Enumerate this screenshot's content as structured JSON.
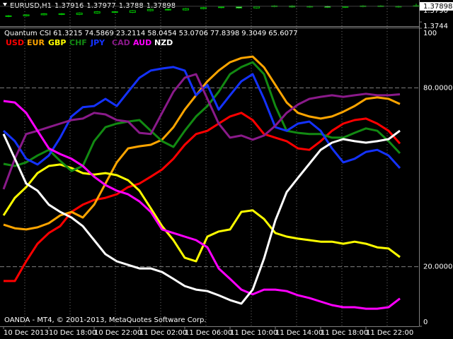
{
  "chart_data": [
    {
      "type": "candlestick",
      "symbol": "EURUSD,H1",
      "color": "#00c000",
      "open": [
        1.376,
        1.3762,
        1.3765,
        1.3768,
        1.3766,
        1.377,
        1.3774,
        1.3772,
        1.3777,
        1.3781,
        1.3779,
        1.3783,
        1.3786,
        1.3788,
        1.3785,
        1.3789,
        1.3791,
        1.3788,
        1.379,
        1.3787,
        1.3789,
        1.3791,
        1.379,
        1.37916
      ],
      "high": [
        1.3764,
        1.3767,
        1.377,
        1.377,
        1.3772,
        1.3776,
        1.3776,
        1.3779,
        1.3783,
        1.3783,
        1.3785,
        1.3788,
        1.379,
        1.379,
        1.3791,
        1.3793,
        1.3793,
        1.3792,
        1.3792,
        1.3791,
        1.3793,
        1.3793,
        1.3792,
        1.37977
      ],
      "low": [
        1.3758,
        1.376,
        1.3763,
        1.3764,
        1.3764,
        1.3768,
        1.377,
        1.377,
        1.3775,
        1.3777,
        1.3777,
        1.3781,
        1.3784,
        1.3783,
        1.3783,
        1.3787,
        1.3786,
        1.3786,
        1.3785,
        1.3785,
        1.3787,
        1.3788,
        1.3786,
        1.3788
      ],
      "close": [
        1.3762,
        1.3765,
        1.3768,
        1.3766,
        1.377,
        1.3774,
        1.3772,
        1.3777,
        1.3781,
        1.3779,
        1.3783,
        1.3786,
        1.3788,
        1.3785,
        1.3789,
        1.3791,
        1.3788,
        1.379,
        1.3787,
        1.3789,
        1.3791,
        1.379,
        1.3788,
        1.37898
      ],
      "ylim": [
        1.3738,
        1.38
      ],
      "yticks": [
        {
          "value": 1.379,
          "label": "1.3790"
        },
        1.3744
      ]
    },
    {
      "type": "line",
      "title": "Quantum CSI",
      "footer": "OANDA - MT4, © 2001-2013, MetaQuotes Software Corp.",
      "categories": [
        "10 Dec 2013",
        null,
        null,
        null,
        "10 Dec 18:00",
        null,
        null,
        null,
        "10 Dec 22:00",
        null,
        null,
        null,
        "11 Dec 02:00",
        null,
        null,
        null,
        "11 Dec 06:00",
        null,
        null,
        null,
        "11 Dec 10:00",
        null,
        null,
        null,
        "11 Dec 14:00",
        null,
        null,
        null,
        "11 Dec 18:00",
        null,
        null,
        null,
        "11 Dec 22:00",
        null,
        null,
        null
      ],
      "series": [
        {
          "name": "USD",
          "color": "#ff0000",
          "values": [
            15.2,
            15.2,
            21.8,
            27.7,
            31.3,
            33.6,
            38.4,
            40.8,
            42.4,
            43.1,
            44.3,
            46.7,
            47.9,
            50.2,
            52.6,
            56.2,
            60.9,
            64.5,
            65.6,
            68.0,
            70.4,
            71.6,
            69.2,
            64.5,
            63.3,
            62.1,
            59.7,
            59.2,
            62.1,
            65.6,
            68.0,
            69.2,
            69.7,
            68.0,
            65.6,
            61.3215
          ]
        },
        {
          "name": "EUR",
          "color": "#ffa500",
          "values": [
            34.1,
            32.9,
            32.5,
            33.2,
            34.6,
            37.2,
            38.4,
            36.5,
            40.8,
            47.9,
            55.0,
            59.7,
            60.4,
            60.9,
            62.6,
            66.8,
            72.7,
            77.5,
            82.2,
            85.8,
            88.6,
            90.0,
            90.5,
            86.9,
            81.0,
            75.1,
            71.6,
            70.4,
            69.7,
            70.4,
            72.0,
            73.9,
            76.3,
            76.8,
            76.3,
            74.5869
          ]
        },
        {
          "name": "GBP",
          "color": "#ffff00",
          "values": [
            37.2,
            43.1,
            46.7,
            51.4,
            53.8,
            54.3,
            53.1,
            51.4,
            50.9,
            51.4,
            50.7,
            49.0,
            45.5,
            39.6,
            33.6,
            28.9,
            23.0,
            21.8,
            30.1,
            31.8,
            32.5,
            38.4,
            38.9,
            36.0,
            31.3,
            30.1,
            29.4,
            28.9,
            28.4,
            28.4,
            27.7,
            28.4,
            27.7,
            26.5,
            26.1,
            23.2114
          ]
        },
        {
          "name": "CHF",
          "color": "#128a12",
          "values": [
            54.5,
            53.8,
            55.0,
            57.3,
            59.2,
            55.5,
            52.1,
            53.8,
            62.1,
            66.8,
            68.0,
            68.7,
            69.2,
            65.6,
            62.1,
            60.2,
            65.6,
            70.4,
            73.9,
            78.7,
            84.6,
            87.0,
            88.6,
            84.6,
            73.9,
            65.6,
            64.9,
            64.5,
            64.5,
            63.3,
            63.3,
            64.9,
            66.4,
            65.6,
            62.1,
            58.0454
          ]
        },
        {
          "name": "JPY",
          "color": "#1432ff",
          "values": [
            65.6,
            62.1,
            56.2,
            54.3,
            57.3,
            63.3,
            70.4,
            73.5,
            73.9,
            76.3,
            73.9,
            78.7,
            83.4,
            85.8,
            86.5,
            87.0,
            85.8,
            77.5,
            81.0,
            72.7,
            77.5,
            82.2,
            84.6,
            76.3,
            66.8,
            65.6,
            68.0,
            68.7,
            65.6,
            59.7,
            55.0,
            56.2,
            58.5,
            59.2,
            57.3,
            53.0706
          ]
        },
        {
          "name": "CAD",
          "color": "#8a1a8a",
          "values": [
            46.0,
            56.2,
            64.5,
            65.6,
            66.8,
            68.0,
            69.2,
            69.7,
            71.6,
            71.1,
            69.2,
            68.7,
            64.9,
            64.5,
            71.6,
            78.7,
            83.4,
            84.6,
            76.3,
            68.0,
            63.3,
            64.0,
            62.6,
            64.0,
            67.3,
            71.6,
            74.4,
            76.3,
            77.0,
            77.5,
            77.0,
            77.5,
            78.0,
            77.5,
            77.5,
            77.8398
          ]
        },
        {
          "name": "AUD",
          "color": "#ff00ff",
          "values": [
            75.6,
            75.1,
            71.6,
            65.6,
            59.7,
            57.8,
            56.2,
            53.8,
            50.2,
            47.4,
            45.5,
            44.3,
            41.9,
            38.4,
            32.5,
            31.3,
            30.1,
            28.9,
            26.5,
            19.4,
            15.9,
            12.3,
            10.7,
            12.3,
            12.3,
            11.8,
            10.4,
            9.5,
            8.3,
            7.1,
            6.4,
            6.4,
            5.9,
            5.9,
            6.4,
            9.3049
          ]
        },
        {
          "name": "NZD",
          "color": "#ffffff",
          "values": [
            64.5,
            56.2,
            47.9,
            45.5,
            40.8,
            38.4,
            36.5,
            33.6,
            28.9,
            24.2,
            21.8,
            20.6,
            19.4,
            19.4,
            18.2,
            15.9,
            13.5,
            12.3,
            11.8,
            10.4,
            8.8,
            7.6,
            12.3,
            22.7,
            35.5,
            45.0,
            49.8,
            54.5,
            59.2,
            61.6,
            62.8,
            62.1,
            61.6,
            62.1,
            62.8,
            65.6077
          ]
        }
      ],
      "ylim": [
        0,
        100
      ],
      "yticks": [
        100,
        {
          "value": 80,
          "label": "80.00000"
        },
        {
          "value": 20,
          "label": "20.00000"
        },
        0
      ],
      "grid": true
    }
  ]
}
